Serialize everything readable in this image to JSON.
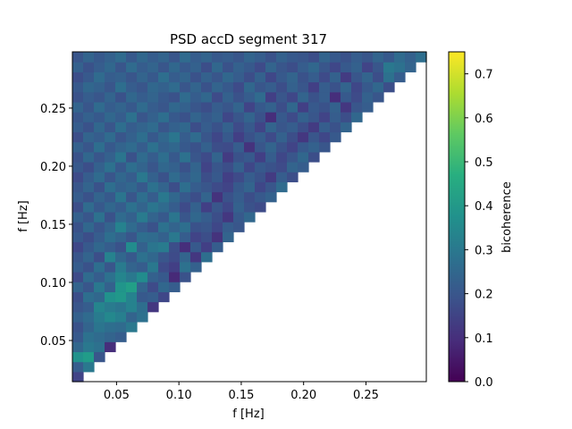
{
  "chart_data": {
    "type": "heatmap",
    "title": "PSD accD segment 317",
    "xlabel": "f [Hz]",
    "ylabel": "f [Hz]",
    "xlim": [
      0.0146,
      0.2984
    ],
    "ylim": [
      0.0146,
      0.2984
    ],
    "n_bins": 33,
    "x_ticks": [
      0.05,
      0.1,
      0.15,
      0.2,
      0.25
    ],
    "x_tick_labels": [
      "0.05",
      "0.10",
      "0.15",
      "0.20",
      "0.25"
    ],
    "y_ticks": [
      0.05,
      0.1,
      0.15,
      0.2,
      0.25
    ],
    "y_tick_labels": [
      "0.05",
      "0.10",
      "0.15",
      "0.20",
      "0.25"
    ],
    "colorbar": {
      "label": "bicoherence",
      "colormap": "viridis",
      "range": [
        0.0,
        0.75
      ],
      "ticks": [
        0.0,
        0.1,
        0.2,
        0.3,
        0.4,
        0.5,
        0.6,
        0.7
      ],
      "tick_labels": [
        "0.0",
        "0.1",
        "0.2",
        "0.3",
        "0.4",
        "0.5",
        "0.6",
        "0.7"
      ]
    },
    "grid": false,
    "note_values": "bicoherence in upper-left triangle (row >= column); rows listed bottom to top",
    "values": [
      [
        0.15
      ],
      [
        0.22,
        0.3
      ],
      [
        0.38,
        0.41,
        0.2
      ],
      [
        0.25,
        0.3,
        0.28,
        0.1
      ],
      [
        0.21,
        0.28,
        0.26,
        0.24,
        0.22
      ],
      [
        0.19,
        0.24,
        0.29,
        0.27,
        0.26,
        0.3
      ],
      [
        0.23,
        0.26,
        0.31,
        0.35,
        0.32,
        0.24,
        0.28
      ],
      [
        0.2,
        0.22,
        0.34,
        0.31,
        0.29,
        0.33,
        0.27,
        0.12
      ],
      [
        0.18,
        0.27,
        0.25,
        0.38,
        0.4,
        0.33,
        0.21,
        0.22,
        0.16
      ],
      [
        0.24,
        0.2,
        0.3,
        0.23,
        0.39,
        0.42,
        0.24,
        0.17,
        0.25,
        0.22
      ],
      [
        0.17,
        0.26,
        0.22,
        0.28,
        0.34,
        0.3,
        0.36,
        0.23,
        0.21,
        0.09,
        0.19
      ],
      [
        0.22,
        0.19,
        0.27,
        0.2,
        0.31,
        0.24,
        0.22,
        0.3,
        0.17,
        0.14,
        0.28,
        0.23
      ],
      [
        0.2,
        0.24,
        0.18,
        0.33,
        0.25,
        0.21,
        0.28,
        0.25,
        0.2,
        0.17,
        0.24,
        0.12,
        0.27
      ],
      [
        0.16,
        0.21,
        0.25,
        0.22,
        0.19,
        0.36,
        0.23,
        0.29,
        0.31,
        0.18,
        0.1,
        0.21,
        0.14,
        0.22
      ],
      [
        0.21,
        0.18,
        0.22,
        0.27,
        0.24,
        0.2,
        0.27,
        0.26,
        0.23,
        0.3,
        0.22,
        0.15,
        0.18,
        0.11,
        0.24
      ],
      [
        0.19,
        0.25,
        0.2,
        0.24,
        0.33,
        0.26,
        0.22,
        0.19,
        0.28,
        0.24,
        0.27,
        0.19,
        0.2,
        0.16,
        0.22,
        0.2
      ],
      [
        0.23,
        0.2,
        0.28,
        0.19,
        0.26,
        0.23,
        0.31,
        0.24,
        0.21,
        0.29,
        0.2,
        0.25,
        0.22,
        0.18,
        0.12,
        0.21,
        0.25
      ],
      [
        0.18,
        0.26,
        0.21,
        0.25,
        0.22,
        0.28,
        0.24,
        0.29,
        0.26,
        0.22,
        0.17,
        0.23,
        0.14,
        0.2,
        0.16,
        0.23,
        0.19,
        0.17
      ],
      [
        0.22,
        0.19,
        0.24,
        0.21,
        0.29,
        0.2,
        0.27,
        0.22,
        0.3,
        0.25,
        0.21,
        0.18,
        0.24,
        0.11,
        0.19,
        0.22,
        0.18,
        0.21,
        0.23
      ],
      [
        0.2,
        0.24,
        0.19,
        0.27,
        0.23,
        0.25,
        0.21,
        0.28,
        0.24,
        0.18,
        0.27,
        0.22,
        0.2,
        0.17,
        0.15,
        0.21,
        0.24,
        0.16,
        0.2,
        0.26
      ],
      [
        0.17,
        0.22,
        0.26,
        0.2,
        0.25,
        0.22,
        0.3,
        0.23,
        0.19,
        0.26,
        0.22,
        0.25,
        0.18,
        0.21,
        0.14,
        0.17,
        0.22,
        0.19,
        0.13,
        0.22,
        0.18
      ],
      [
        0.21,
        0.18,
        0.23,
        0.28,
        0.21,
        0.27,
        0.24,
        0.2,
        0.25,
        0.23,
        0.19,
        0.24,
        0.15,
        0.2,
        0.18,
        0.23,
        0.16,
        0.21,
        0.19,
        0.17,
        0.24,
        0.22
      ],
      [
        0.19,
        0.25,
        0.2,
        0.23,
        0.29,
        0.19,
        0.26,
        0.22,
        0.27,
        0.21,
        0.28,
        0.2,
        0.17,
        0.24,
        0.13,
        0.19,
        0.21,
        0.14,
        0.22,
        0.16,
        0.2,
        0.25,
        0.18
      ],
      [
        0.23,
        0.2,
        0.27,
        0.21,
        0.24,
        0.26,
        0.22,
        0.28,
        0.23,
        0.25,
        0.21,
        0.19,
        0.23,
        0.18,
        0.17,
        0.22,
        0.11,
        0.2,
        0.24,
        0.19,
        0.15,
        0.21,
        0.23,
        0.2
      ],
      [
        0.18,
        0.24,
        0.22,
        0.26,
        0.2,
        0.23,
        0.27,
        0.21,
        0.25,
        0.29,
        0.22,
        0.26,
        0.2,
        0.16,
        0.21,
        0.14,
        0.19,
        0.22,
        0.17,
        0.23,
        0.18,
        0.12,
        0.2,
        0.16,
        0.21
      ],
      [
        0.22,
        0.19,
        0.25,
        0.2,
        0.27,
        0.22,
        0.24,
        0.26,
        0.2,
        0.23,
        0.25,
        0.18,
        0.22,
        0.19,
        0.23,
        0.17,
        0.21,
        0.15,
        0.24,
        0.2,
        0.22,
        0.18,
        0.13,
        0.22,
        0.19,
        0.24
      ],
      [
        0.2,
        0.23,
        0.21,
        0.25,
        0.22,
        0.28,
        0.2,
        0.23,
        0.27,
        0.21,
        0.19,
        0.24,
        0.21,
        0.23,
        0.16,
        0.2,
        0.24,
        0.19,
        0.1,
        0.21,
        0.17,
        0.23,
        0.2,
        0.15,
        0.22,
        0.18,
        0.25
      ],
      [
        0.24,
        0.2,
        0.26,
        0.22,
        0.24,
        0.21,
        0.26,
        0.22,
        0.2,
        0.25,
        0.23,
        0.2,
        0.18,
        0.22,
        0.2,
        0.24,
        0.15,
        0.21,
        0.23,
        0.18,
        0.25,
        0.14,
        0.21,
        0.19,
        0.23,
        0.12,
        0.2,
        0.22
      ],
      [
        0.19,
        0.22,
        0.2,
        0.24,
        0.19,
        0.25,
        0.22,
        0.24,
        0.21,
        0.19,
        0.26,
        0.22,
        0.25,
        0.17,
        0.23,
        0.19,
        0.22,
        0.26,
        0.14,
        0.2,
        0.16,
        0.24,
        0.19,
        0.22,
        0.1,
        0.21,
        0.17,
        0.23,
        0.2
      ],
      [
        0.21,
        0.25,
        0.23,
        0.2,
        0.27,
        0.22,
        0.2,
        0.25,
        0.23,
        0.26,
        0.2,
        0.24,
        0.19,
        0.24,
        0.21,
        0.17,
        0.25,
        0.2,
        0.22,
        0.18,
        0.23,
        0.2,
        0.14,
        0.22,
        0.19,
        0.24,
        0.16,
        0.21,
        0.25,
        0.18
      ],
      [
        0.18,
        0.21,
        0.26,
        0.22,
        0.23,
        0.2,
        0.24,
        0.21,
        0.27,
        0.22,
        0.24,
        0.19,
        0.23,
        0.2,
        0.25,
        0.22,
        0.18,
        0.23,
        0.16,
        0.21,
        0.24,
        0.19,
        0.22,
        0.17,
        0.23,
        0.13,
        0.2,
        0.24,
        0.18,
        0.28,
        0.22
      ],
      [
        0.23,
        0.19,
        0.22,
        0.25,
        0.2,
        0.26,
        0.22,
        0.24,
        0.2,
        0.25,
        0.21,
        0.23,
        0.18,
        0.25,
        0.19,
        0.23,
        0.21,
        0.17,
        0.24,
        0.2,
        0.18,
        0.22,
        0.25,
        0.2,
        0.16,
        0.21,
        0.23,
        0.15,
        0.2,
        0.3,
        0.28,
        0.24
      ],
      [
        0.2,
        0.24,
        0.21,
        0.23,
        0.26,
        0.21,
        0.25,
        0.22,
        0.24,
        0.2,
        0.26,
        0.22,
        0.24,
        0.21,
        0.22,
        0.2,
        0.24,
        0.22,
        0.19,
        0.23,
        0.21,
        0.2,
        0.18,
        0.24,
        0.21,
        0.19,
        0.22,
        0.2,
        0.24,
        0.21,
        0.26,
        0.23,
        0.27
      ]
    ]
  }
}
